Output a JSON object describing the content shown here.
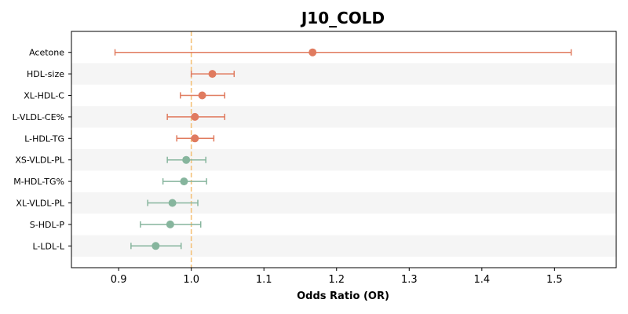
{
  "chart_data": {
    "type": "forest",
    "title": "J10_COLD",
    "xlabel": "Odds Ratio (OR)",
    "xlim": [
      0.835,
      1.585
    ],
    "xticks": [
      0.9,
      1.0,
      1.1,
      1.2,
      1.3,
      1.4,
      1.5
    ],
    "xtick_labels": [
      "0.9",
      "1.0",
      "1.1",
      "1.2",
      "1.3",
      "1.4",
      "1.5"
    ],
    "reference_line": 1.0,
    "colors": {
      "positive": "#e07b5f",
      "negative": "#86b59d",
      "reference": "#f4c27a",
      "band": "#f5f5f5"
    },
    "points": [
      {
        "label": "Acetone",
        "or": 1.167,
        "lo": 0.895,
        "hi": 1.523,
        "color": "#e07b5f"
      },
      {
        "label": "HDL-size",
        "or": 1.029,
        "lo": 1.0,
        "hi": 1.059,
        "color": "#e07b5f"
      },
      {
        "label": "XL-HDL-C",
        "or": 1.015,
        "lo": 0.985,
        "hi": 1.046,
        "color": "#e07b5f"
      },
      {
        "label": "L-VLDL-CE%",
        "or": 1.005,
        "lo": 0.967,
        "hi": 1.046,
        "color": "#e07b5f"
      },
      {
        "label": "L-HDL-TG",
        "or": 1.005,
        "lo": 0.98,
        "hi": 1.031,
        "color": "#e07b5f"
      },
      {
        "label": "XS-VLDL-PL",
        "or": 0.993,
        "lo": 0.967,
        "hi": 1.02,
        "color": "#86b59d"
      },
      {
        "label": "M-HDL-TG%",
        "or": 0.99,
        "lo": 0.961,
        "hi": 1.021,
        "color": "#86b59d"
      },
      {
        "label": "XL-VLDL-PL",
        "or": 0.974,
        "lo": 0.94,
        "hi": 1.009,
        "color": "#86b59d"
      },
      {
        "label": "S-HDL-P",
        "or": 0.971,
        "lo": 0.93,
        "hi": 1.013,
        "color": "#86b59d"
      },
      {
        "label": "L-LDL-L",
        "or": 0.951,
        "lo": 0.917,
        "hi": 0.986,
        "color": "#86b59d"
      }
    ]
  }
}
